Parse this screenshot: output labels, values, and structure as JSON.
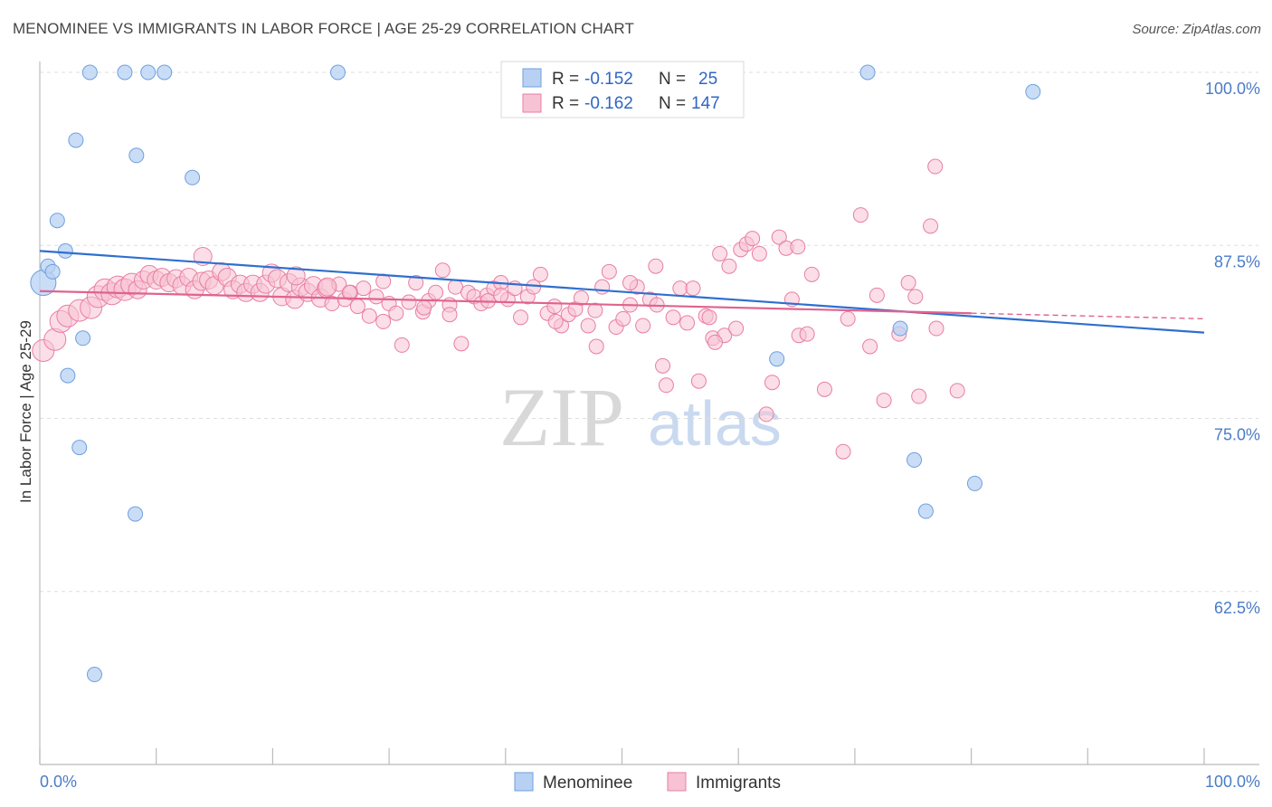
{
  "title": "MENOMINEE VS IMMIGRANTS IN LABOR FORCE | AGE 25-29 CORRELATION CHART",
  "source": "Source: ZipAtlas.com",
  "watermark": {
    "zip": "ZIP",
    "atlas": "atlas"
  },
  "colors": {
    "blue_fill": "#b8d1f3",
    "blue_stroke": "#6e9fe0",
    "blue_line": "#2f6fcf",
    "pink_fill": "#f7c3d4",
    "pink_stroke": "#e87ea3",
    "pink_line": "#e0638f",
    "axis_text": "#4a7cc8",
    "grid": "#dddddd"
  },
  "legend": {
    "row1": {
      "r_label": "R =",
      "r_value": "-0.152",
      "n_label": "N =",
      "n_value": "25"
    },
    "row2": {
      "r_label": "R =",
      "r_value": "-0.162",
      "n_label": "N =",
      "n_value": "147"
    }
  },
  "bottom_legend": {
    "series1": "Menominee",
    "series2": "Immigrants"
  },
  "chart_data": {
    "type": "scatter",
    "title": "MENOMINEE VS IMMIGRANTS IN LABOR FORCE | AGE 25-29 CORRELATION CHART",
    "xlabel": "",
    "ylabel": "In Labor Force | Age 25-29",
    "xlim": [
      0,
      100
    ],
    "ylim": [
      50,
      100
    ],
    "x_tick_labels": [
      "0.0%",
      "100.0%"
    ],
    "y_ticks": [
      100,
      87.5,
      75,
      62.5
    ],
    "y_tick_labels": [
      "100.0%",
      "87.5%",
      "75.0%",
      "62.5%"
    ],
    "grid": true,
    "legend_position": "top-center",
    "series": [
      {
        "name": "Menominee",
        "r": -0.152,
        "n": 25,
        "trend": {
          "x": [
            0,
            100
          ],
          "y": [
            87.1,
            81.2
          ]
        },
        "points": [
          [
            0.3,
            84.8
          ],
          [
            0.7,
            86.0
          ],
          [
            1.1,
            85.6
          ],
          [
            1.5,
            89.3
          ],
          [
            2.2,
            87.1
          ],
          [
            2.4,
            78.1
          ],
          [
            3.1,
            95.1
          ],
          [
            3.4,
            72.9
          ],
          [
            3.7,
            80.8
          ],
          [
            4.3,
            100.0
          ],
          [
            7.3,
            100.0
          ],
          [
            9.3,
            100.0
          ],
          [
            10.7,
            100.0
          ],
          [
            8.3,
            94.0
          ],
          [
            13.1,
            92.4
          ],
          [
            8.2,
            68.1
          ],
          [
            4.7,
            56.5
          ],
          [
            25.6,
            100.0
          ],
          [
            71.1,
            100.0
          ],
          [
            85.3,
            98.6
          ],
          [
            73.9,
            81.5
          ],
          [
            63.3,
            79.3
          ],
          [
            75.1,
            72.0
          ],
          [
            76.1,
            68.3
          ],
          [
            80.3,
            70.3
          ]
        ]
      },
      {
        "name": "Immigrants",
        "r": -0.162,
        "n": 147,
        "trend": {
          "x": [
            0,
            80
          ],
          "y": [
            84.2,
            82.6
          ]
        },
        "trend_dashed": {
          "x": [
            80,
            100
          ],
          "y": [
            82.6,
            82.2
          ]
        },
        "points": [
          [
            0.3,
            79.9
          ],
          [
            1.3,
            80.7
          ],
          [
            1.8,
            82.0
          ],
          [
            2.4,
            82.4
          ],
          [
            3.4,
            82.8
          ],
          [
            4.4,
            83.0
          ],
          [
            5.0,
            83.8
          ],
          [
            5.6,
            84.3
          ],
          [
            6.2,
            84.0
          ],
          [
            6.7,
            84.5
          ],
          [
            7.3,
            84.3
          ],
          [
            7.9,
            84.7
          ],
          [
            8.4,
            84.3
          ],
          [
            8.9,
            85.0
          ],
          [
            9.4,
            85.4
          ],
          [
            10.0,
            85.0
          ],
          [
            10.5,
            85.2
          ],
          [
            11.1,
            84.8
          ],
          [
            11.7,
            85.1
          ],
          [
            12.2,
            84.6
          ],
          [
            12.8,
            85.2
          ],
          [
            13.3,
            84.3
          ],
          [
            13.9,
            84.9
          ],
          [
            14.0,
            86.7
          ],
          [
            14.5,
            85.0
          ],
          [
            15.0,
            84.6
          ],
          [
            15.6,
            85.6
          ],
          [
            16.1,
            85.2
          ],
          [
            16.6,
            84.3
          ],
          [
            17.2,
            84.7
          ],
          [
            17.7,
            84.1
          ],
          [
            18.3,
            84.7
          ],
          [
            18.9,
            84.1
          ],
          [
            19.4,
            84.7
          ],
          [
            19.9,
            85.5
          ],
          [
            20.4,
            85.1
          ],
          [
            20.8,
            83.8
          ],
          [
            21.4,
            84.8
          ],
          [
            21.9,
            83.6
          ],
          [
            22.4,
            84.5
          ],
          [
            23.0,
            84.1
          ],
          [
            23.5,
            84.6
          ],
          [
            24.1,
            83.7
          ],
          [
            24.6,
            84.4
          ],
          [
            25.1,
            83.3
          ],
          [
            25.7,
            84.7
          ],
          [
            26.2,
            83.6
          ],
          [
            26.7,
            84.1
          ],
          [
            27.3,
            83.1
          ],
          [
            27.8,
            84.4
          ],
          [
            28.3,
            82.4
          ],
          [
            28.9,
            83.8
          ],
          [
            29.5,
            84.9
          ],
          [
            30.0,
            83.3
          ],
          [
            30.6,
            82.6
          ],
          [
            31.1,
            80.3
          ],
          [
            31.7,
            83.4
          ],
          [
            32.3,
            84.8
          ],
          [
            32.9,
            82.7
          ],
          [
            33.4,
            83.5
          ],
          [
            34.0,
            84.1
          ],
          [
            34.6,
            85.7
          ],
          [
            35.2,
            83.2
          ],
          [
            35.7,
            84.5
          ],
          [
            36.2,
            80.4
          ],
          [
            36.8,
            84.1
          ],
          [
            37.3,
            83.8
          ],
          [
            37.9,
            83.3
          ],
          [
            38.4,
            83.9
          ],
          [
            39.0,
            84.4
          ],
          [
            39.6,
            84.8
          ],
          [
            40.2,
            83.6
          ],
          [
            40.8,
            84.4
          ],
          [
            41.3,
            82.3
          ],
          [
            41.9,
            83.8
          ],
          [
            42.4,
            84.5
          ],
          [
            43.0,
            85.4
          ],
          [
            43.6,
            82.6
          ],
          [
            44.2,
            83.1
          ],
          [
            44.8,
            81.7
          ],
          [
            45.4,
            82.5
          ],
          [
            46.0,
            82.9
          ],
          [
            46.5,
            83.7
          ],
          [
            47.1,
            81.7
          ],
          [
            47.7,
            82.8
          ],
          [
            48.3,
            84.5
          ],
          [
            48.9,
            85.6
          ],
          [
            49.5,
            81.6
          ],
          [
            50.1,
            82.2
          ],
          [
            50.7,
            83.2
          ],
          [
            51.3,
            84.5
          ],
          [
            51.8,
            81.7
          ],
          [
            52.4,
            83.6
          ],
          [
            52.9,
            86.0
          ],
          [
            53.5,
            78.8
          ],
          [
            53.8,
            77.4
          ],
          [
            54.4,
            82.3
          ],
          [
            55.0,
            84.4
          ],
          [
            55.6,
            81.9
          ],
          [
            56.1,
            84.4
          ],
          [
            56.6,
            77.7
          ],
          [
            57.2,
            82.4
          ],
          [
            57.8,
            80.8
          ],
          [
            58.4,
            86.9
          ],
          [
            58.8,
            81.0
          ],
          [
            59.2,
            86.0
          ],
          [
            59.8,
            81.5
          ],
          [
            60.2,
            87.2
          ],
          [
            60.7,
            87.6
          ],
          [
            61.2,
            88.0
          ],
          [
            61.8,
            86.9
          ],
          [
            62.4,
            75.3
          ],
          [
            62.9,
            77.6
          ],
          [
            63.5,
            88.1
          ],
          [
            64.1,
            87.3
          ],
          [
            64.6,
            83.6
          ],
          [
            65.1,
            87.4
          ],
          [
            65.2,
            81.0
          ],
          [
            66.3,
            85.4
          ],
          [
            67.4,
            77.1
          ],
          [
            69.0,
            72.6
          ],
          [
            69.4,
            82.2
          ],
          [
            70.5,
            89.7
          ],
          [
            71.3,
            80.2
          ],
          [
            71.9,
            83.9
          ],
          [
            72.5,
            76.3
          ],
          [
            73.8,
            81.1
          ],
          [
            74.6,
            84.8
          ],
          [
            75.2,
            83.8
          ],
          [
            75.5,
            76.6
          ],
          [
            76.5,
            88.9
          ],
          [
            77.0,
            81.5
          ],
          [
            76.9,
            93.2
          ],
          [
            78.8,
            77.0
          ],
          [
            38.5,
            83.5
          ],
          [
            39.6,
            83.9
          ],
          [
            53.0,
            83.2
          ],
          [
            57.5,
            82.3
          ],
          [
            65.9,
            81.1
          ],
          [
            47.8,
            80.2
          ],
          [
            44.3,
            82.0
          ],
          [
            35.2,
            82.5
          ],
          [
            26.6,
            84.1
          ],
          [
            22.0,
            85.3
          ],
          [
            29.5,
            82.0
          ],
          [
            33.0,
            83.0
          ],
          [
            58.0,
            80.5
          ],
          [
            50.7,
            84.8
          ],
          [
            24.7,
            84.5
          ]
        ]
      }
    ]
  }
}
